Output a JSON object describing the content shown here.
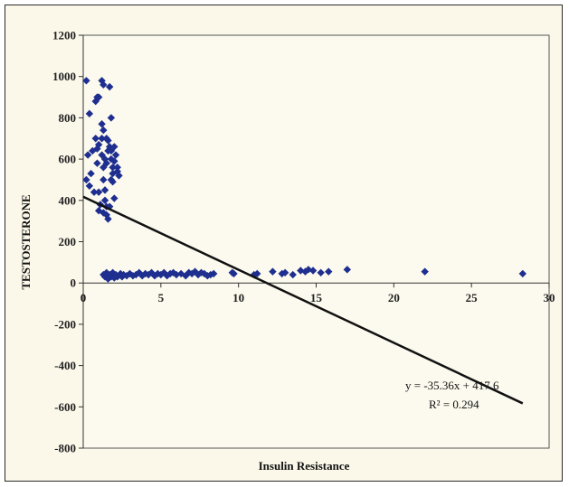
{
  "chart_data": {
    "type": "scatter",
    "xlabel": "Insulin Resistance",
    "ylabel": "TESTOSTERONE",
    "xlim": [
      0,
      30
    ],
    "ylim": [
      -800,
      1200
    ],
    "x_ticks": [
      0,
      5,
      10,
      15,
      20,
      25,
      30
    ],
    "y_ticks": [
      -800,
      -600,
      -400,
      -200,
      0,
      200,
      400,
      600,
      800,
      1000,
      1200
    ],
    "x_tick_labels": [
      "0",
      "5",
      "10",
      "15",
      "20",
      "25",
      "30"
    ],
    "y_tick_labels": [
      "-800",
      "-600",
      "-400",
      "-200",
      "0",
      "200",
      "400",
      "600",
      "800",
      "1000",
      "1200"
    ],
    "grid": false,
    "marker_color": "#1f2f8f",
    "line_color": "#111111",
    "trendline": {
      "slope": -35.36,
      "intercept": 417.6,
      "x_range": [
        0,
        28.3
      ],
      "equation_label": "y = -35.36x + 417.6",
      "r2_label": "R² = 0.294"
    },
    "points": [
      {
        "x": 0.2,
        "y": 980
      },
      {
        "x": 0.4,
        "y": 820
      },
      {
        "x": 0.3,
        "y": 620
      },
      {
        "x": 0.6,
        "y": 640
      },
      {
        "x": 0.2,
        "y": 500
      },
      {
        "x": 0.5,
        "y": 530
      },
      {
        "x": 0.4,
        "y": 470
      },
      {
        "x": 0.7,
        "y": 440
      },
      {
        "x": 0.8,
        "y": 880
      },
      {
        "x": 0.9,
        "y": 900
      },
      {
        "x": 1.0,
        "y": 900
      },
      {
        "x": 0.9,
        "y": 650
      },
      {
        "x": 1.0,
        "y": 670
      },
      {
        "x": 0.8,
        "y": 700
      },
      {
        "x": 0.9,
        "y": 580
      },
      {
        "x": 1.0,
        "y": 440
      },
      {
        "x": 1.1,
        "y": 380
      },
      {
        "x": 1.0,
        "y": 350
      },
      {
        "x": 1.2,
        "y": 980
      },
      {
        "x": 1.3,
        "y": 960
      },
      {
        "x": 1.2,
        "y": 770
      },
      {
        "x": 1.3,
        "y": 740
      },
      {
        "x": 1.2,
        "y": 700
      },
      {
        "x": 1.2,
        "y": 620
      },
      {
        "x": 1.3,
        "y": 560
      },
      {
        "x": 1.4,
        "y": 600
      },
      {
        "x": 1.3,
        "y": 500
      },
      {
        "x": 1.4,
        "y": 450
      },
      {
        "x": 1.4,
        "y": 400
      },
      {
        "x": 1.3,
        "y": 340
      },
      {
        "x": 1.5,
        "y": 700
      },
      {
        "x": 1.6,
        "y": 690
      },
      {
        "x": 1.5,
        "y": 580
      },
      {
        "x": 1.6,
        "y": 640
      },
      {
        "x": 1.5,
        "y": 370
      },
      {
        "x": 1.5,
        "y": 330
      },
      {
        "x": 1.6,
        "y": 310
      },
      {
        "x": 1.7,
        "y": 950
      },
      {
        "x": 1.7,
        "y": 370
      },
      {
        "x": 1.8,
        "y": 800
      },
      {
        "x": 1.7,
        "y": 660
      },
      {
        "x": 1.8,
        "y": 640
      },
      {
        "x": 1.8,
        "y": 600
      },
      {
        "x": 1.9,
        "y": 560
      },
      {
        "x": 1.9,
        "y": 530
      },
      {
        "x": 1.8,
        "y": 500
      },
      {
        "x": 1.9,
        "y": 490
      },
      {
        "x": 2.0,
        "y": 660
      },
      {
        "x": 2.1,
        "y": 620
      },
      {
        "x": 2.0,
        "y": 590
      },
      {
        "x": 2.2,
        "y": 560
      },
      {
        "x": 2.0,
        "y": 410
      },
      {
        "x": 2.2,
        "y": 540
      },
      {
        "x": 2.3,
        "y": 520
      },
      {
        "x": 1.3,
        "y": 40
      },
      {
        "x": 1.4,
        "y": 30
      },
      {
        "x": 1.5,
        "y": 50
      },
      {
        "x": 1.6,
        "y": 20
      },
      {
        "x": 1.7,
        "y": 40
      },
      {
        "x": 1.8,
        "y": 30
      },
      {
        "x": 1.9,
        "y": 50
      },
      {
        "x": 2.0,
        "y": 25
      },
      {
        "x": 2.1,
        "y": 40
      },
      {
        "x": 2.2,
        "y": 30
      },
      {
        "x": 2.4,
        "y": 45
      },
      {
        "x": 2.5,
        "y": 30
      },
      {
        "x": 2.6,
        "y": 40
      },
      {
        "x": 2.8,
        "y": 35
      },
      {
        "x": 3.0,
        "y": 45
      },
      {
        "x": 3.2,
        "y": 35
      },
      {
        "x": 3.4,
        "y": 40
      },
      {
        "x": 3.6,
        "y": 50
      },
      {
        "x": 3.8,
        "y": 35
      },
      {
        "x": 4.0,
        "y": 45
      },
      {
        "x": 4.2,
        "y": 40
      },
      {
        "x": 4.4,
        "y": 50
      },
      {
        "x": 4.6,
        "y": 35
      },
      {
        "x": 4.8,
        "y": 45
      },
      {
        "x": 5.0,
        "y": 40
      },
      {
        "x": 5.2,
        "y": 50
      },
      {
        "x": 5.4,
        "y": 35
      },
      {
        "x": 5.6,
        "y": 45
      },
      {
        "x": 5.8,
        "y": 50
      },
      {
        "x": 6.0,
        "y": 40
      },
      {
        "x": 6.3,
        "y": 45
      },
      {
        "x": 6.6,
        "y": 35
      },
      {
        "x": 6.8,
        "y": 50
      },
      {
        "x": 7.0,
        "y": 45
      },
      {
        "x": 7.2,
        "y": 55
      },
      {
        "x": 7.4,
        "y": 40
      },
      {
        "x": 7.6,
        "y": 50
      },
      {
        "x": 7.8,
        "y": 45
      },
      {
        "x": 8.0,
        "y": 35
      },
      {
        "x": 8.2,
        "y": 40
      },
      {
        "x": 8.4,
        "y": 45
      },
      {
        "x": 9.6,
        "y": 50
      },
      {
        "x": 9.7,
        "y": 45
      },
      {
        "x": 11.0,
        "y": 40
      },
      {
        "x": 11.2,
        "y": 45
      },
      {
        "x": 12.2,
        "y": 55
      },
      {
        "x": 12.8,
        "y": 45
      },
      {
        "x": 13.0,
        "y": 50
      },
      {
        "x": 13.5,
        "y": 40
      },
      {
        "x": 14.0,
        "y": 60
      },
      {
        "x": 14.3,
        "y": 55
      },
      {
        "x": 14.5,
        "y": 65
      },
      {
        "x": 14.8,
        "y": 60
      },
      {
        "x": 15.3,
        "y": 50
      },
      {
        "x": 15.8,
        "y": 55
      },
      {
        "x": 17.0,
        "y": 65
      },
      {
        "x": 22.0,
        "y": 55
      },
      {
        "x": 28.3,
        "y": 45
      }
    ]
  }
}
